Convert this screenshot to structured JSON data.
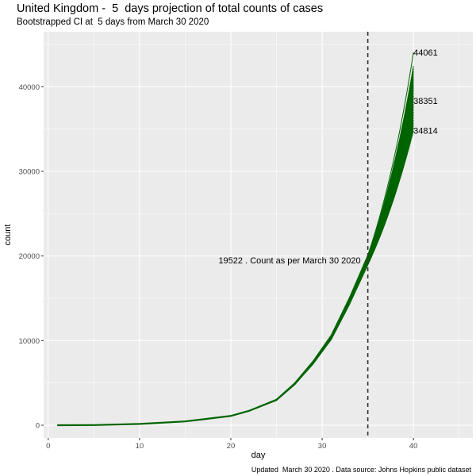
{
  "title": "United Kingdom -  5  days projection of total counts of cases",
  "subtitle": "Bootstrapped CI at  5 days from March 30 2020",
  "caption": "Updated  March 30 2020 . Data source: Johns Hopkins public dataset",
  "colors": {
    "panel": "#ebebeb",
    "grid": "#ffffff",
    "series": "#006400",
    "vline": "#333333"
  },
  "chart_data": {
    "type": "line",
    "xlabel": "day",
    "ylabel": "count",
    "xlim": [
      -0.5,
      46.5
    ],
    "ylim": [
      -1500,
      46500
    ],
    "x_ticks": [
      0,
      10,
      20,
      30,
      40
    ],
    "y_ticks": [
      0,
      10000,
      20000,
      30000,
      40000
    ],
    "y_tick_labels": [
      "0",
      "10000",
      "20000",
      "30000",
      "40000"
    ],
    "grid": true,
    "observed": {
      "x": [
        1,
        5,
        10,
        15,
        20,
        22,
        25,
        27,
        29,
        31,
        33,
        35
      ],
      "y": [
        0,
        20,
        150,
        450,
        1100,
        1700,
        3000,
        4900,
        7400,
        10400,
        14700,
        19522
      ]
    },
    "projection_end_day": 40,
    "projection_range": [
      34814,
      44061
    ],
    "vline_x": 35,
    "annotations": [
      {
        "text": "19522 . Count as per March 30 2020",
        "x": 35,
        "y": 19522,
        "anchor": "end"
      },
      {
        "text": "44061",
        "x": 40,
        "y": 44061,
        "anchor": "start"
      },
      {
        "text": "38351",
        "x": 40,
        "y": 38351,
        "anchor": "start"
      },
      {
        "text": "34814",
        "x": 40,
        "y": 34814,
        "anchor": "start"
      }
    ]
  }
}
